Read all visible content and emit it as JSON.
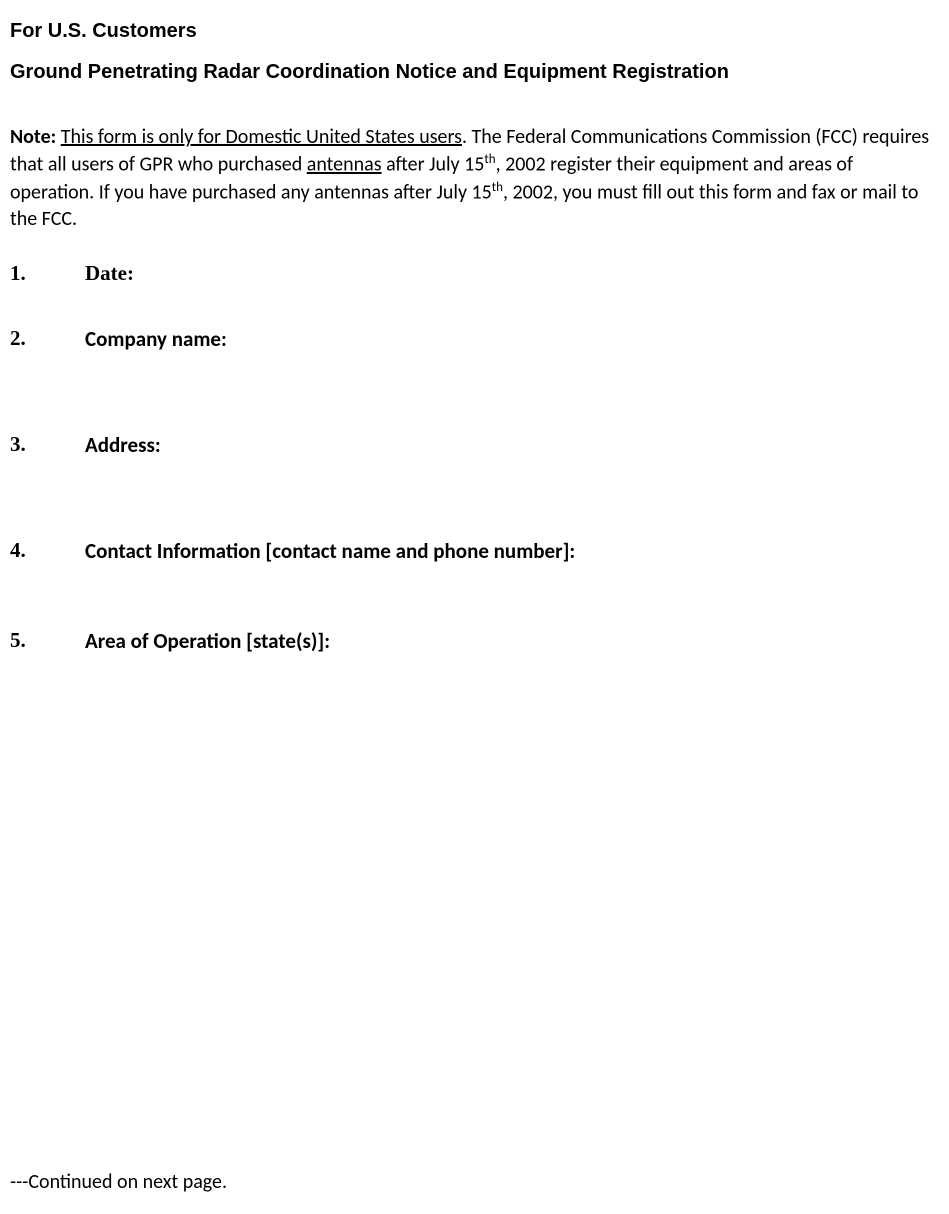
{
  "header": {
    "line1": "For U.S. Customers",
    "line2": "Ground Penetrating Radar Coordination Notice and Equipment Registration"
  },
  "note": {
    "label": "Note:",
    "underlined_phrase1": "This form is only for Domestic United States users",
    "text_part1": ". The Federal Communications Commission (FCC) requires that all users of GPR who purchased ",
    "underlined_phrase2": "antennas",
    "text_part2": " after July 15",
    "sup1": "th",
    "text_part3": ", 2002 register their equipment and areas of operation. If you have purchased any antennas after July 15",
    "sup2": "th",
    "text_part4": ", 2002, you must fill out this form and fax or mail to the FCC."
  },
  "form_items": [
    {
      "number": "1.",
      "label": "Date:"
    },
    {
      "number": "2.",
      "label": "Company name:"
    },
    {
      "number": "3.",
      "label": "Address:"
    },
    {
      "number": "4.",
      "label": "Contact Information [contact name and phone number]:"
    },
    {
      "number": "5.",
      "label": "Area of Operation [state(s)]:"
    }
  ],
  "footer": "---Continued on next page.",
  "colors": {
    "text": "#000000",
    "background": "#ffffff"
  },
  "typography": {
    "heading_font": "Arial",
    "body_font": "Calibri",
    "heading_size_pt": 15,
    "body_size_pt": 15,
    "form_number_size_pt": 16
  }
}
